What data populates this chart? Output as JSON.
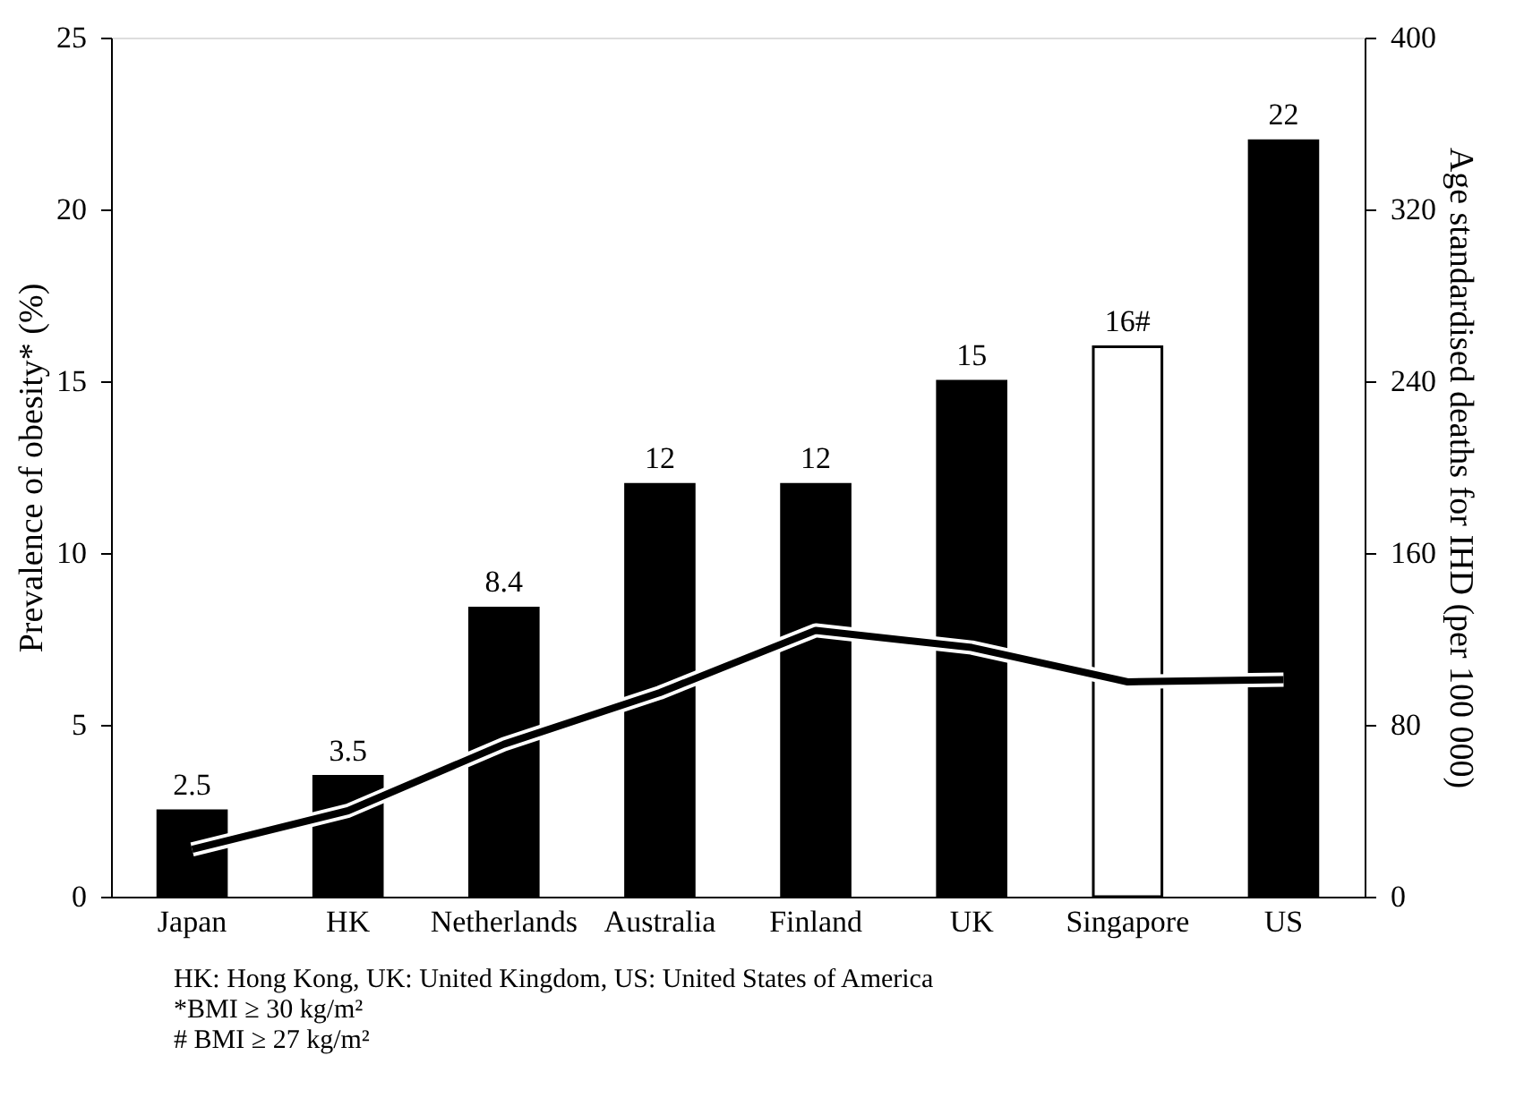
{
  "chart_data": {
    "type": "bar",
    "categories": [
      "Japan",
      "HK",
      "Netherlands",
      "Australia",
      "Finland",
      "UK",
      "Singapore",
      "US"
    ],
    "ylabel": "Prevalence of obesity* (%)",
    "y2label": "Age standardised deaths for IHD (per 100 000)",
    "series": [
      {
        "values": [
          2.5,
          3.5,
          8.4,
          12,
          12,
          15,
          16,
          22
        ],
        "colors": [
          "#000000",
          "#000000",
          "#000000",
          "#000000",
          "#000000",
          "#000000",
          "#ffffff",
          "#000000"
        ],
        "value_labels": [
          "2.5",
          "3.5",
          "8.4",
          "12",
          "12",
          "15",
          "16#",
          "22"
        ]
      },
      {
        "type": "line",
        "axis": "y2",
        "color": "#000000",
        "values": [
          22,
          40,
          71,
          95,
          124,
          116,
          100,
          101
        ]
      }
    ],
    "ylim": [
      0,
      25
    ],
    "yticks": [
      0,
      5,
      10,
      15,
      20,
      25
    ],
    "y2lim": [
      0,
      400
    ],
    "y2ticks": [
      0,
      80,
      160,
      240,
      320,
      400
    ],
    "grid": false,
    "annotations": [
      "HK: Hong Kong, UK: United Kingdom, US: United States of America",
      "*BMI ≥ 30 kg/m²",
      "# BMI ≥ 27 kg/m²"
    ]
  }
}
